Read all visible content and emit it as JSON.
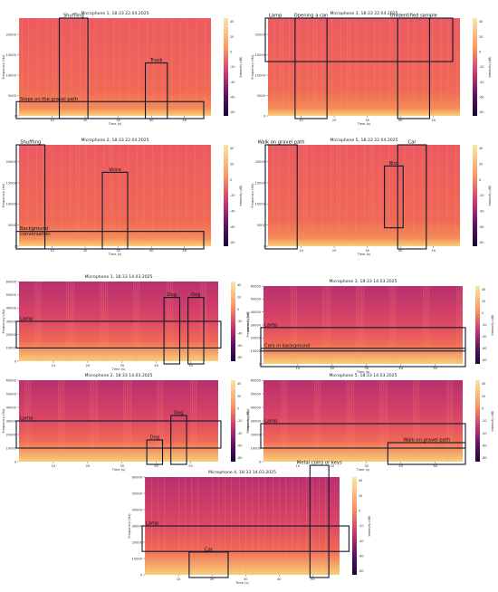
{
  "figure": {
    "colorbar_label": "Intensity (dB)",
    "colorbar_ticks": [
      "40",
      "20",
      "0",
      "-20",
      "-40",
      "-60",
      "-80"
    ],
    "ylabel": "Frequency (Hz)",
    "xlabel": "Time (s)",
    "colors": {
      "low": "#1a0636",
      "mid": "#d23a72",
      "high": "#f9e6a8",
      "body": "#f06a56",
      "box": "#0c1830"
    }
  },
  "chart_data": [
    {
      "type": "heatmap",
      "id": "mic1-0422",
      "title": "Microphone 1, 18:33 22.04.2025",
      "yticks": [
        "0",
        "5000",
        "10000",
        "15000",
        "20000"
      ],
      "xticks": [
        "10",
        "20",
        "30",
        "40",
        "50"
      ],
      "clim": [
        -80,
        40
      ],
      "annotations": [
        {
          "label": "Shuffling",
          "t": [
            13,
            20
          ],
          "f": [
            0,
            24000
          ]
        },
        {
          "label": "Steps on the gravel path",
          "t": [
            0,
            55
          ],
          "f": [
            0,
            3500
          ]
        },
        {
          "label": "Truck",
          "t": [
            39,
            44
          ],
          "f": [
            0,
            13000
          ]
        }
      ]
    },
    {
      "type": "heatmap",
      "id": "mic3-0422",
      "title": "Microphone 3, 18:33 22.04.2025",
      "yticks": [
        "0",
        "5000",
        "10000",
        "15000",
        "20000"
      ],
      "xticks": [
        "10",
        "20",
        "30",
        "40",
        "50"
      ],
      "clim": [
        -80,
        40
      ],
      "annotations": [
        {
          "label": "Lamp",
          "t": [
            0,
            55
          ],
          "f": [
            14000,
            24000
          ]
        },
        {
          "label": "Opening a can",
          "t": [
            9,
            17
          ],
          "f": [
            0,
            24000
          ]
        },
        {
          "label": "Unidentified sample",
          "t": [
            40,
            48
          ],
          "f": [
            0,
            24000
          ]
        }
      ]
    },
    {
      "type": "heatmap",
      "id": "mic2-0422",
      "title": "Microphone 2, 18:33 22.04.2025",
      "yticks": [
        "0",
        "5000",
        "10000",
        "15000",
        "20000"
      ],
      "xticks": [
        "10",
        "20",
        "30",
        "40",
        "50"
      ],
      "clim": [
        -80,
        40
      ],
      "annotations": [
        {
          "label": "Shuffling",
          "t": [
            0,
            7
          ],
          "f": [
            0,
            24000
          ]
        },
        {
          "label": "Voice",
          "t": [
            26,
            32
          ],
          "f": [
            0,
            17500
          ]
        },
        {
          "label": "Background\nconversation",
          "t": [
            0,
            55
          ],
          "f": [
            0,
            3500
          ]
        }
      ]
    },
    {
      "type": "heatmap",
      "id": "mic5-0422",
      "title": "Microphone 5, 18:33 22.04.2025",
      "yticks": [
        "0",
        "5000",
        "10000",
        "15000",
        "20000"
      ],
      "xticks": [
        "10",
        "20",
        "30",
        "40",
        "50"
      ],
      "clim": [
        -80,
        40
      ],
      "annotations": [
        {
          "label": "Walk on gravel path",
          "t": [
            0,
            8
          ],
          "f": [
            0,
            24000
          ]
        },
        {
          "label": "Bird",
          "t": [
            36,
            40
          ],
          "f": [
            5000,
            19000
          ]
        },
        {
          "label": "Car",
          "t": [
            40,
            47
          ],
          "f": [
            0,
            24000
          ]
        }
      ]
    },
    {
      "type": "heatmap",
      "id": "mic1-0314",
      "title": "Microphone 1, 18:33 14.03.2025",
      "yticks": [
        "0",
        "10000",
        "20000",
        "30000",
        "40000",
        "50000",
        "60000"
      ],
      "xticks": [
        "10",
        "20",
        "30",
        "40",
        "50"
      ],
      "clim": [
        -80,
        40
      ],
      "annotations": [
        {
          "label": "Lamp",
          "t": [
            0,
            58
          ],
          "f": [
            12000,
            30000
          ]
        },
        {
          "label": "Dog",
          "t": [
            43,
            46
          ],
          "f": [
            0,
            48000
          ]
        },
        {
          "label": "Dog",
          "t": [
            50,
            53
          ],
          "f": [
            0,
            48000
          ]
        }
      ]
    },
    {
      "type": "heatmap",
      "id": "mic3-0314",
      "title": "Microphone 3, 18:33 14.03.2025",
      "yticks": [
        "0",
        "10000",
        "20000",
        "30000",
        "40000",
        "50000",
        "60000"
      ],
      "xticks": [
        "10",
        "20",
        "30",
        "40",
        "50"
      ],
      "clim": [
        -80,
        40
      ],
      "annotations": [
        {
          "label": "Lamp",
          "t": [
            0,
            58
          ],
          "f": [
            12000,
            28000
          ]
        },
        {
          "label": "Cars in background",
          "t": [
            0,
            58
          ],
          "f": [
            0,
            12000
          ]
        }
      ]
    },
    {
      "type": "heatmap",
      "id": "mic2-0314",
      "title": "Microphone 2, 18:33 14.03.2025",
      "yticks": [
        "0",
        "10000",
        "20000",
        "30000",
        "40000",
        "50000",
        "60000"
      ],
      "xticks": [
        "10",
        "20",
        "30",
        "40",
        "50"
      ],
      "clim": [
        -80,
        40
      ],
      "annotations": [
        {
          "label": "Lamp",
          "t": [
            0,
            58
          ],
          "f": [
            12000,
            30000
          ]
        },
        {
          "label": "Dog",
          "t": [
            45,
            48
          ],
          "f": [
            0,
            34000
          ]
        },
        {
          "label": "Dog",
          "t": [
            38,
            41
          ],
          "f": [
            0,
            16000
          ]
        }
      ]
    },
    {
      "type": "heatmap",
      "id": "mic5-0314",
      "title": "Microphone 5, 18:33 14.03.2025",
      "yticks": [
        "0",
        "10000",
        "20000",
        "30000",
        "40000",
        "50000",
        "60000"
      ],
      "xticks": [
        "10",
        "20",
        "30",
        "40",
        "50"
      ],
      "clim": [
        -80,
        40
      ],
      "annotations": [
        {
          "label": "Lamp",
          "t": [
            0,
            58
          ],
          "f": [
            12000,
            28000
          ]
        },
        {
          "label": "Walk on gravel path",
          "t": [
            37,
            58
          ],
          "f": [
            0,
            14000
          ]
        }
      ]
    },
    {
      "type": "heatmap",
      "id": "mic4-0314",
      "title": "Microphone 4, 18:33 14.03.2025",
      "yticks": [
        "0",
        "10000",
        "20000",
        "30000",
        "40000",
        "50000",
        "60000"
      ],
      "xticks": [
        "10",
        "20",
        "30",
        "40",
        "50"
      ],
      "clim": [
        -80,
        40
      ],
      "annotations": [
        {
          "label": "Lamp",
          "t": [
            0,
            60
          ],
          "f": [
            16000,
            30000
          ]
        },
        {
          "label": "Metal coins or keys",
          "t": [
            50,
            54
          ],
          "f": [
            0,
            68000
          ]
        },
        {
          "label": "Car",
          "t": [
            14,
            24
          ],
          "f": [
            0,
            14000
          ]
        }
      ]
    }
  ]
}
